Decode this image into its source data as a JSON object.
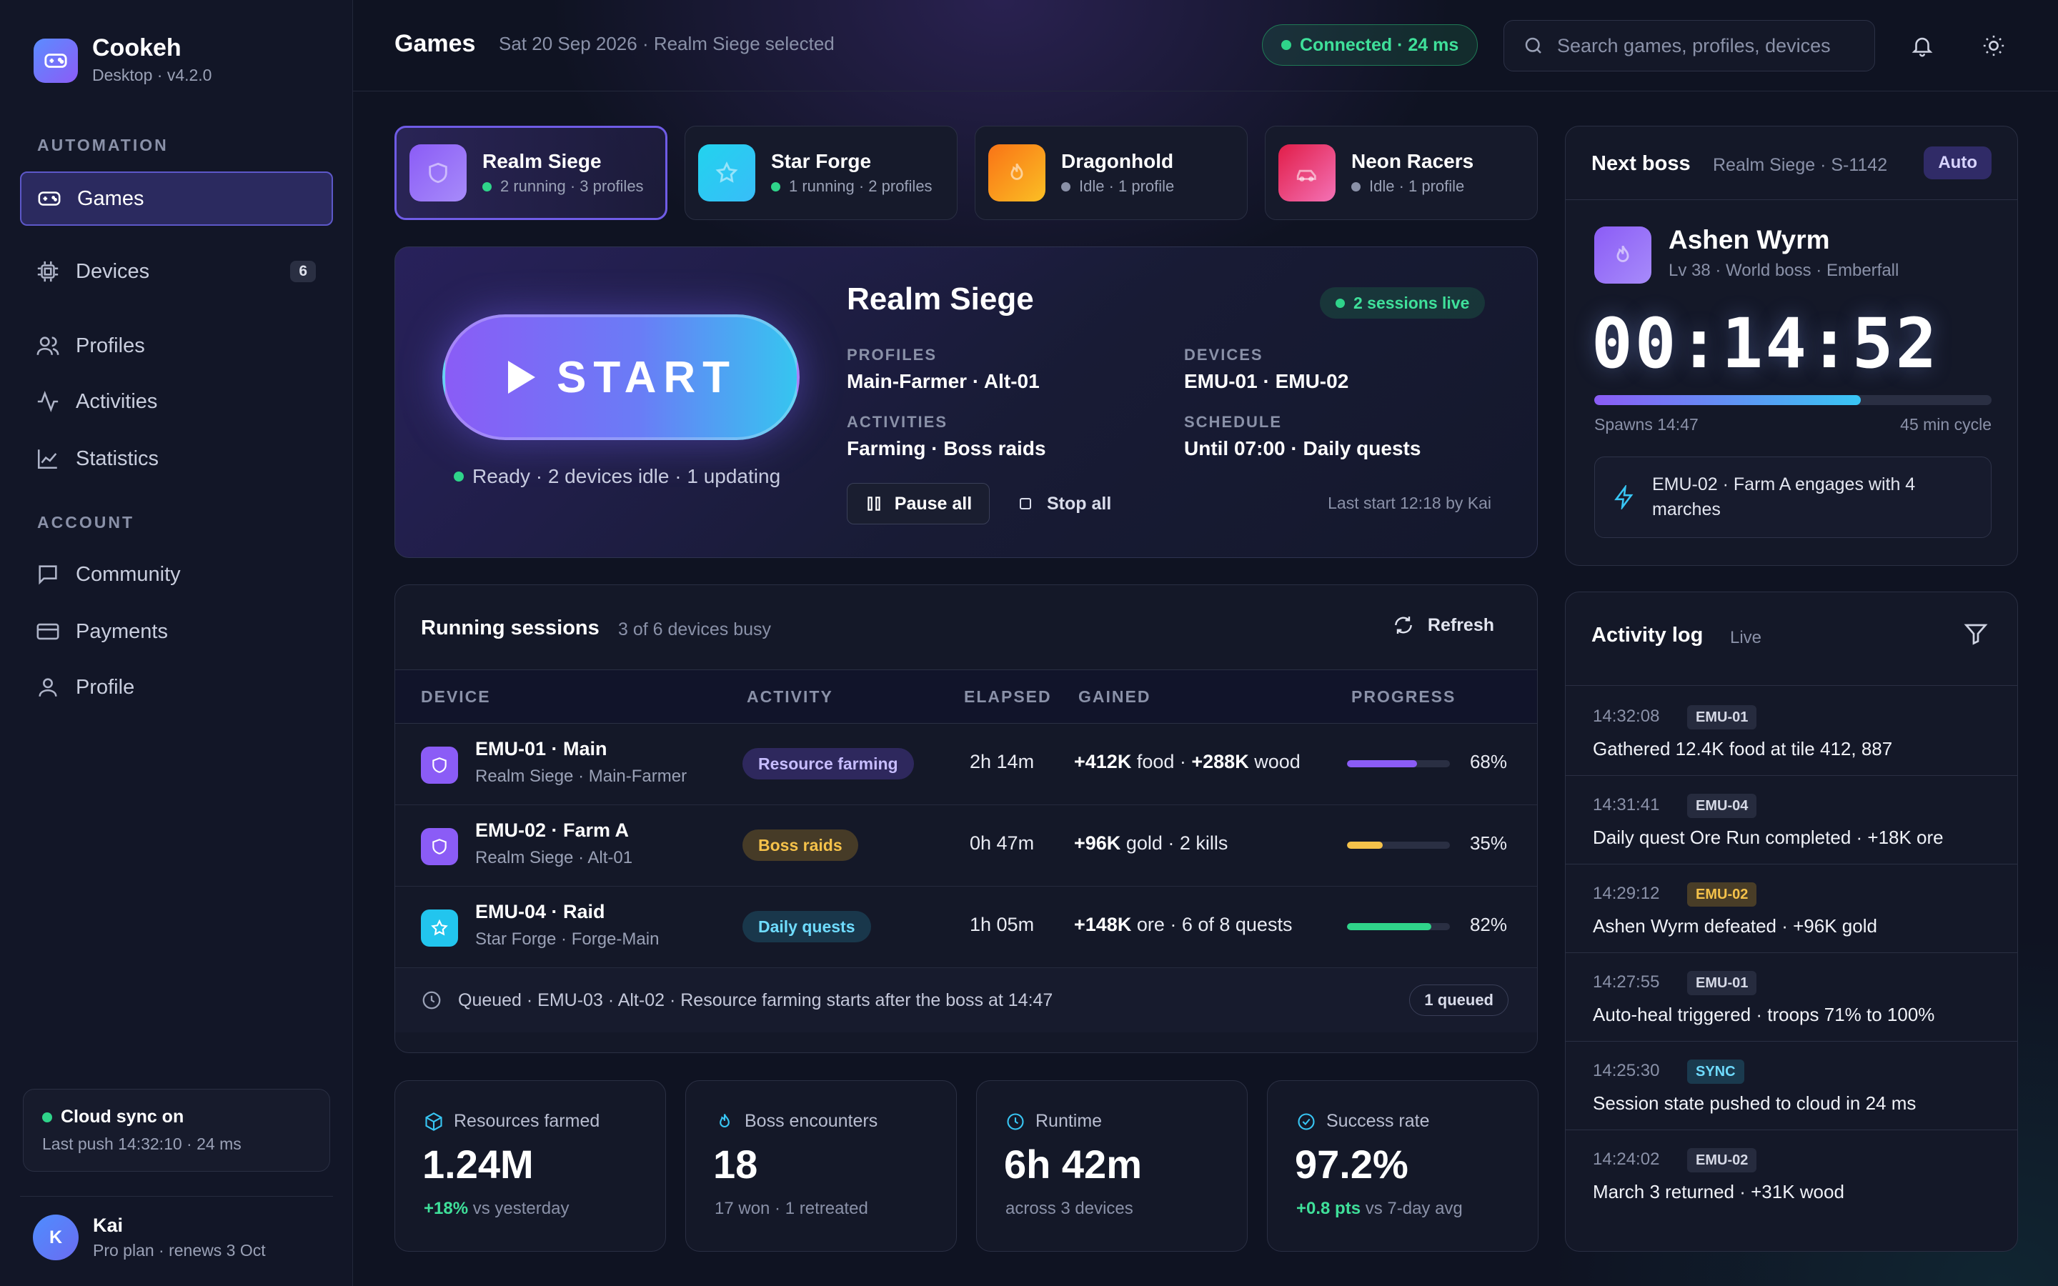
{
  "app": {
    "name": "Cookeh",
    "version": "Desktop · v4.2.0"
  },
  "sidebar": {
    "section_automation": "AUTOMATION",
    "section_account": "ACCOUNT",
    "items": [
      {
        "label": "Games"
      },
      {
        "label": "Devices",
        "badge": "6"
      },
      {
        "label": "Profiles"
      },
      {
        "label": "Activities"
      },
      {
        "label": "Statistics"
      },
      {
        "label": "Community"
      },
      {
        "label": "Payments"
      },
      {
        "label": "Profile"
      }
    ],
    "sync": {
      "title": "Cloud sync on",
      "sub": "Last push 14:32:10 · 24 ms"
    },
    "user": {
      "initial": "K",
      "name": "Kai",
      "plan": "Pro plan · renews 3 Oct"
    }
  },
  "header": {
    "title": "Games",
    "subtitle": "Sat 20 Sep 2026 · Realm Siege selected",
    "connection": "Connected · 24 ms",
    "search_placeholder": "Search games, profiles, devices"
  },
  "games": [
    {
      "name": "Realm Siege",
      "sub": "2 running · 3 profiles",
      "status": "running"
    },
    {
      "name": "Star Forge",
      "sub": "1 running · 2 profiles",
      "status": "running"
    },
    {
      "name": "Dragonhold",
      "sub": "Idle · 1 profile",
      "status": "idle"
    },
    {
      "name": "Neon Racers",
      "sub": "Idle · 1 profile",
      "status": "idle"
    }
  ],
  "hero": {
    "start_label": "START",
    "ready": "Ready · 2 devices idle · 1 updating",
    "title": "Realm Siege",
    "live": "2 sessions live",
    "profiles_label": "PROFILES",
    "profiles": "Main-Farmer · Alt-01",
    "devices_label": "DEVICES",
    "devices": "EMU-01 · EMU-02",
    "activities_label": "ACTIVITIES",
    "activities": "Farming · Boss raids",
    "schedule_label": "SCHEDULE",
    "schedule": "Until 07:00 · Daily quests",
    "pause": "Pause all",
    "stop": "Stop all",
    "last_start": "Last start 12:18 by Kai"
  },
  "sessions": {
    "title": "Running sessions",
    "sub": "3 of 6 devices busy",
    "refresh": "Refresh",
    "columns": [
      "DEVICE",
      "ACTIVITY",
      "ELAPSED",
      "GAINED",
      "PROGRESS"
    ],
    "rows": [
      {
        "device": "EMU-01 · Main",
        "sub": "Realm Siege · Main-Farmer",
        "activity": "Resource farming",
        "elapsed": "2h 14m",
        "gain_a": "+412K",
        "gain_a_unit": " food · ",
        "gain_b": "+288K",
        "gain_b_unit": " wood",
        "progress": 0.68,
        "pct": "68%"
      },
      {
        "device": "EMU-02 · Farm A",
        "sub": "Realm Siege · Alt-01",
        "activity": "Boss raids",
        "elapsed": "0h 47m",
        "gain_a": "+96K",
        "gain_a_unit": " gold · 2 kills",
        "gain_b": "",
        "gain_b_unit": "",
        "progress": 0.35,
        "pct": "35%"
      },
      {
        "device": "EMU-04 · Raid",
        "sub": "Star Forge · Forge-Main",
        "activity": "Daily quests",
        "elapsed": "1h 05m",
        "gain_a": "+148K",
        "gain_a_unit": " ore · 6 of 8 quests",
        "gain_b": "",
        "gain_b_unit": "",
        "progress": 0.82,
        "pct": "82%"
      }
    ],
    "queued": "Queued · EMU-03 · Alt-02 · Resource farming starts after the boss at 14:47",
    "queued_pill": "1 queued"
  },
  "stats": [
    {
      "label": "Resources farmed",
      "value": "1.24M",
      "delta": "+18%",
      "sub": " vs yesterday"
    },
    {
      "label": "Boss encounters",
      "value": "18",
      "delta": "",
      "sub": "17 won · 1 retreated"
    },
    {
      "label": "Runtime",
      "value": "6h 42m",
      "delta": "",
      "sub": "across 3 devices"
    },
    {
      "label": "Success rate",
      "value": "97.2%",
      "delta": "+0.8 pts",
      "sub": " vs 7-day avg"
    }
  ],
  "boss": {
    "title": "Next boss",
    "sub": "Realm Siege · S-1142",
    "mode": "Auto",
    "name": "Ashen Wyrm",
    "detail": "Lv 38 · World boss · Emberfall",
    "timer": "00:14:52",
    "progress": 0.67,
    "spawns": "Spawns 14:47",
    "cycle": "45 min cycle",
    "event": "EMU-02 · Farm A engages with 4 marches"
  },
  "log": {
    "title": "Activity log",
    "live": "Live",
    "items": [
      {
        "time": "14:32:08",
        "tag": "EMU-01",
        "text": "Gathered 12.4K food at tile 412, 887"
      },
      {
        "time": "14:31:41",
        "tag": "EMU-04",
        "text": "Daily quest Ore Run completed · +18K ore"
      },
      {
        "time": "14:29:12",
        "tag": "EMU-02",
        "text": "Ashen Wyrm defeated · +96K gold"
      },
      {
        "time": "14:27:55",
        "tag": "EMU-01",
        "text": "Auto-heal triggered · troops 71% to 100%"
      },
      {
        "time": "14:25:30",
        "tag": "SYNC",
        "text": "Session state pushed to cloud in 24 ms"
      },
      {
        "time": "14:24:02",
        "tag": "EMU-02",
        "text": "March 3 returned · +31K wood"
      }
    ]
  },
  "colors": {
    "accent": "#8b5cf6",
    "cyan": "#38c6f4",
    "green": "#2fd48a",
    "amber": "#f5c24a"
  }
}
